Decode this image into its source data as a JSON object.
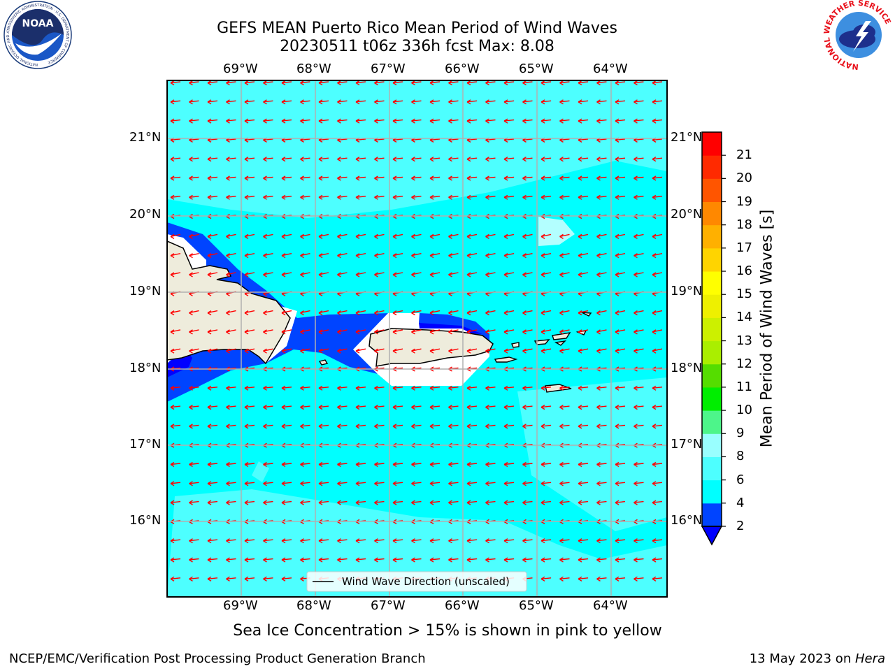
{
  "title": {
    "line1": "GEFS MEAN Puerto Rico Mean Period of Wind Waves",
    "line2": "20230511 t06z 336h fcst   Max: 8.08"
  },
  "map": {
    "lon_labels": [
      "69°W",
      "68°W",
      "67°W",
      "66°W",
      "65°W",
      "64°W"
    ],
    "lat_labels": [
      "21°N",
      "20°N",
      "19°N",
      "18°N",
      "17°N",
      "16°N"
    ],
    "legend_label": "Wind Wave Direction (unscaled)",
    "arrow_color": "#ff0000",
    "ocean_color": "#00ffff",
    "land_color": "#eeecdc"
  },
  "colorbar": {
    "title": "Mean Period of Wind Waves [s]",
    "ticks": [
      "2",
      "4",
      "6",
      "8",
      "9",
      "10",
      "11",
      "12",
      "13",
      "14",
      "15",
      "16",
      "17",
      "18",
      "19",
      "20",
      "21"
    ],
    "colors": [
      "#0044ff",
      "#00ffff",
      "#4dffff",
      "#99ffff",
      "#4df58a",
      "#00ee00",
      "#55dd00",
      "#aaee00",
      "#ccf000",
      "#eef000",
      "#ffff00",
      "#ffd400",
      "#ffb000",
      "#ff8800",
      "#ff5500",
      "#ff2a00",
      "#ff0000"
    ],
    "under_color": "#0000ff"
  },
  "note": "Sea Ice Concentration > 15% is shown in pink to yellow",
  "footer": {
    "left": "NCEP/EMC/Verification Post Processing Product Generation Branch",
    "right_prefix": "13 May 2023 on ",
    "right_host": "Hera"
  },
  "logos": {
    "noaa_text": "NOAA",
    "noaa_ring": "NATIONAL OCEANIC AND ATMOSPHERIC ADMINISTRATION · U.S. DEPARTMENT OF COMMERCE",
    "nws_ring": "NATIONAL WEATHER SERVICE"
  }
}
